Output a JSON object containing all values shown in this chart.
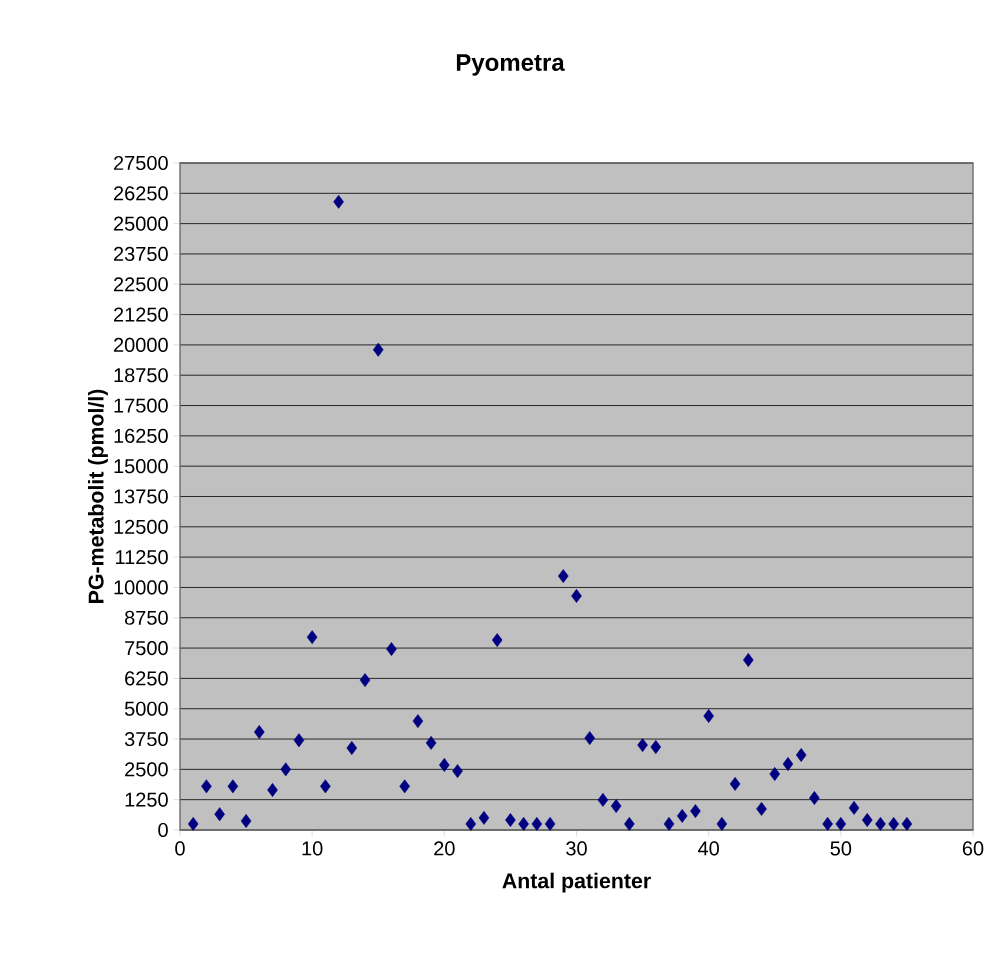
{
  "chart_data": {
    "type": "scatter",
    "title": "Pyometra",
    "xlabel": "Antal patienter",
    "ylabel": "PG-metabolit (pmol/l)",
    "x": [
      1,
      2,
      3,
      4,
      5,
      6,
      7,
      8,
      9,
      10,
      11,
      12,
      13,
      14,
      15,
      16,
      17,
      18,
      19,
      20,
      21,
      22,
      23,
      24,
      25,
      26,
      27,
      28,
      29,
      30,
      31,
      32,
      33,
      34,
      35,
      36,
      37,
      38,
      39,
      40,
      41,
      42,
      43,
      44,
      45,
      46,
      47,
      48,
      49,
      50,
      51,
      52,
      53,
      54,
      55
    ],
    "values": [
      250,
      1800,
      650,
      1800,
      370,
      4040,
      1650,
      2500,
      3700,
      7950,
      1800,
      25900,
      3380,
      6180,
      19800,
      7460,
      1800,
      4490,
      3590,
      2680,
      2430,
      250,
      500,
      7830,
      410,
      250,
      250,
      250,
      10470,
      9650,
      3790,
      1240,
      990,
      250,
      3500,
      3420,
      250,
      580,
      780,
      4700,
      250,
      1900,
      7010,
      870,
      2310,
      2720,
      3090,
      1320,
      250,
      250,
      910,
      410,
      250,
      250,
      250
    ],
    "color": "#000080",
    "marker": "diamond",
    "grid": "y",
    "xlim": [
      0,
      60
    ],
    "xticks": [
      0,
      10,
      20,
      30,
      40,
      50,
      60
    ],
    "ylim": [
      0,
      27500
    ],
    "yticks": [
      0,
      1250,
      2500,
      3750,
      5000,
      6250,
      7500,
      8750,
      10000,
      11250,
      12500,
      13750,
      15000,
      16250,
      17500,
      18750,
      20000,
      21250,
      22500,
      23750,
      25000,
      26250,
      27500
    ]
  }
}
